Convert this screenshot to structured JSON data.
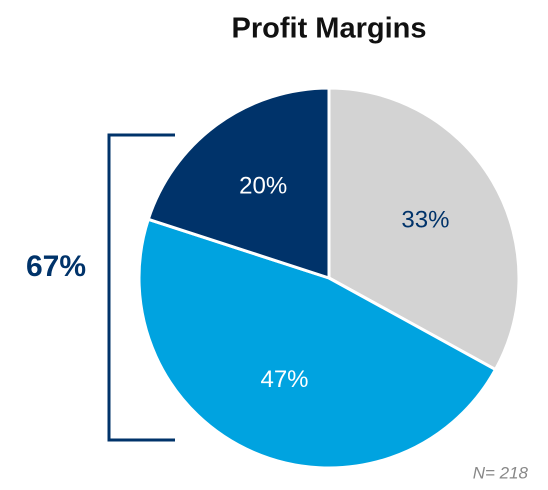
{
  "chart_data": {
    "type": "pie",
    "title": "Profit Margins",
    "values": [
      33,
      47,
      20
    ],
    "value_labels": [
      "33%",
      "47%",
      "20%"
    ],
    "colors": [
      "#d3d3d3",
      "#00a3e0",
      "#00336a"
    ],
    "label_colors": [
      "#00336a",
      "#ffffff",
      "#ffffff"
    ],
    "bracket_label": "67%",
    "note": "N= 218"
  }
}
